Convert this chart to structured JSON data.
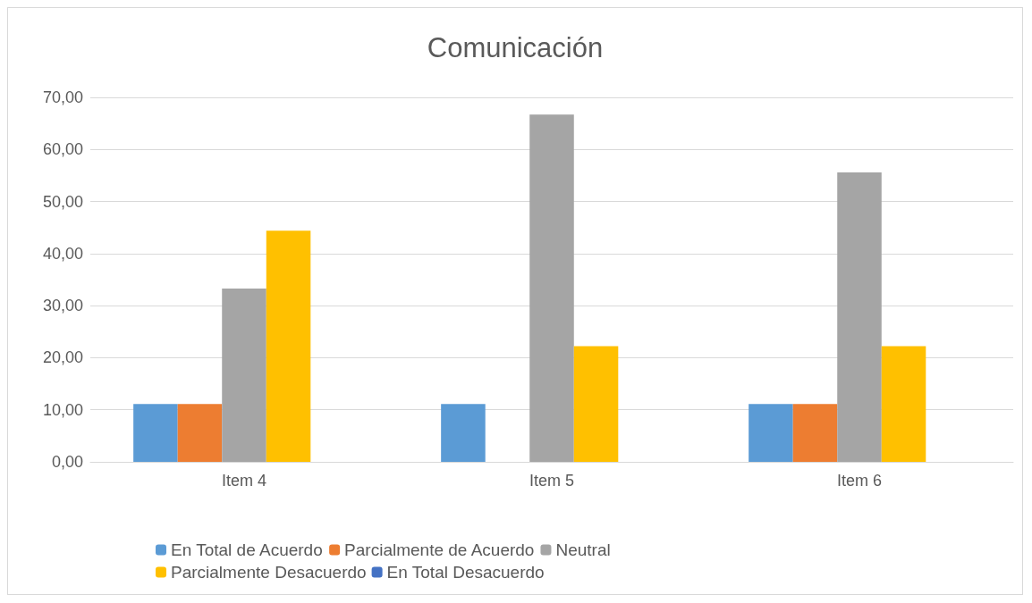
{
  "chart_data": {
    "type": "bar",
    "title": "Comunicación",
    "categories": [
      "Item 4",
      "Item 5",
      "Item 6"
    ],
    "series": [
      {
        "name": "En Total de Acuerdo",
        "color": "#5b9bd5",
        "values": [
          11.1,
          11.1,
          11.1
        ]
      },
      {
        "name": "Parcialmente de Acuerdo",
        "color": "#ed7d31",
        "values": [
          11.1,
          0,
          11.1
        ]
      },
      {
        "name": "Neutral",
        "color": "#a5a5a5",
        "values": [
          33.3,
          66.7,
          55.6
        ]
      },
      {
        "name": "Parcialmente Desacuerdo",
        "color": "#ffc000",
        "values": [
          44.4,
          22.2,
          22.2
        ]
      },
      {
        "name": "En Total Desacuerdo",
        "color": "#4472c4",
        "values": [
          0,
          0,
          0
        ]
      }
    ],
    "ylim": [
      0,
      70
    ],
    "yticks": [
      {
        "value": 0,
        "label": "0,00"
      },
      {
        "value": 10,
        "label": "10,00"
      },
      {
        "value": 20,
        "label": "20,00"
      },
      {
        "value": 30,
        "label": "30,00"
      },
      {
        "value": 40,
        "label": "40,00"
      },
      {
        "value": 50,
        "label": "50,00"
      },
      {
        "value": 60,
        "label": "60,00"
      },
      {
        "value": 70,
        "label": "70,00"
      }
    ],
    "grid": "y",
    "legend": "bottom"
  }
}
